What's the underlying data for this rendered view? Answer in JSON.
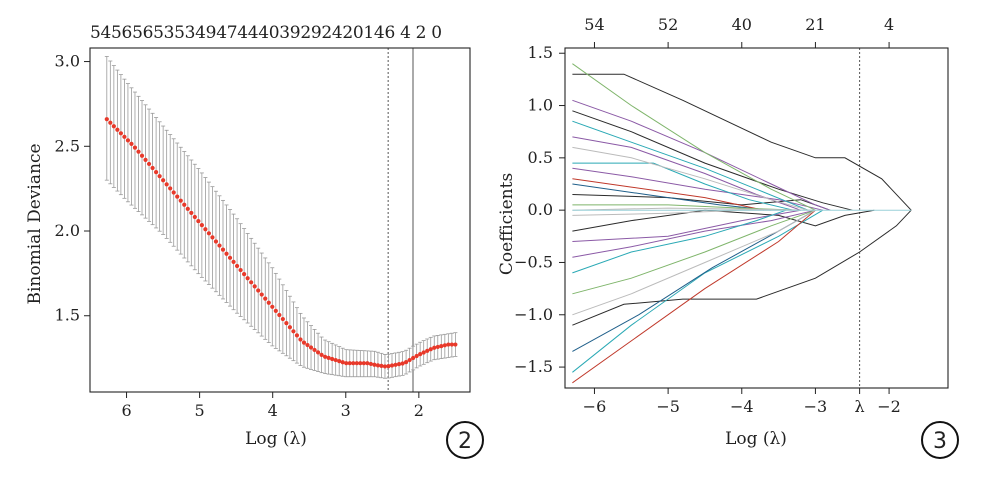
{
  "chart_data": [
    {
      "type": "line",
      "panel_label": "2",
      "xlabel": "Log (λ)",
      "ylabel": "Binomial Deviance",
      "xlim": [
        6.5,
        1.3
      ],
      "ylim": [
        1.05,
        3.08
      ],
      "x_ticks": [
        {
          "value": 6,
          "label": "6"
        },
        {
          "value": 5,
          "label": "5"
        },
        {
          "value": 4,
          "label": "4"
        },
        {
          "value": 3,
          "label": "3"
        },
        {
          "value": 2,
          "label": "2"
        }
      ],
      "y_ticks": [
        {
          "value": 3.0,
          "label": "3.0"
        },
        {
          "value": 2.5,
          "label": "2.5"
        },
        {
          "value": 2.0,
          "label": "2.0"
        },
        {
          "value": 1.5,
          "label": "1.5"
        }
      ],
      "top_axis_label": "54565653534947444039292420146 4 2 0",
      "vlines": [
        2.42,
        2.08
      ],
      "series": [
        {
          "color": "#e8392a",
          "points": [
            [
              6.27,
              2.66
            ],
            [
              5.9,
              2.5
            ],
            [
              5.5,
              2.3
            ],
            [
              5.0,
              2.05
            ],
            [
              4.5,
              1.8
            ],
            [
              4.0,
              1.55
            ],
            [
              3.6,
              1.35
            ],
            [
              3.3,
              1.26
            ],
            [
              3.0,
              1.22
            ],
            [
              2.7,
              1.22
            ],
            [
              2.6,
              1.21
            ],
            [
              2.45,
              1.2
            ],
            [
              2.2,
              1.22
            ],
            [
              2.0,
              1.27
            ],
            [
              1.8,
              1.31
            ],
            [
              1.6,
              1.33
            ],
            [
              1.5,
              1.33
            ]
          ]
        }
      ],
      "error_bars": [
        [
          6.27,
          2.3,
          3.03
        ],
        [
          6.0,
          2.18,
          2.88
        ],
        [
          5.5,
          1.98,
          2.62
        ],
        [
          5.0,
          1.74,
          2.36
        ],
        [
          4.5,
          1.52,
          2.08
        ],
        [
          4.0,
          1.32,
          1.78
        ],
        [
          3.6,
          1.2,
          1.5
        ],
        [
          3.3,
          1.16,
          1.36
        ],
        [
          3.0,
          1.14,
          1.3
        ],
        [
          2.6,
          1.14,
          1.29
        ],
        [
          2.45,
          1.13,
          1.27
        ],
        [
          2.2,
          1.15,
          1.29
        ],
        [
          2.0,
          1.2,
          1.34
        ],
        [
          1.8,
          1.24,
          1.38
        ],
        [
          1.5,
          1.26,
          1.4
        ]
      ]
    },
    {
      "type": "line",
      "panel_label": "3",
      "xlabel": "Log (λ)",
      "ylabel": "Coefficients",
      "xlim": [
        -6.4,
        -1.2
      ],
      "ylim": [
        -1.7,
        1.55
      ],
      "x_ticks": [
        {
          "value": -6,
          "label": "−6"
        },
        {
          "value": -5,
          "label": "−5"
        },
        {
          "value": -4,
          "label": "−4"
        },
        {
          "value": -3,
          "label": "−3"
        },
        {
          "value": -2.4,
          "label": "λ"
        },
        {
          "value": -2,
          "label": "−2"
        }
      ],
      "y_ticks": [
        {
          "value": 1.5,
          "label": "1.5"
        },
        {
          "value": 1.0,
          "label": "1.0"
        },
        {
          "value": 0.5,
          "label": "0.5"
        },
        {
          "value": 0.0,
          "label": "0.0"
        },
        {
          "value": -0.5,
          "label": "−0.5"
        },
        {
          "value": -1.0,
          "label": "−1.0"
        },
        {
          "value": -1.5,
          "label": "−1.5"
        }
      ],
      "top_ticks": [
        {
          "value": -6,
          "label": "54"
        },
        {
          "value": -5,
          "label": "52"
        },
        {
          "value": -4,
          "label": "40"
        },
        {
          "value": -3,
          "label": "21"
        },
        {
          "value": -2,
          "label": "4"
        }
      ],
      "vline": -2.4,
      "series": [
        {
          "color": "#2b2b2b",
          "points": [
            [
              -6.3,
              1.3
            ],
            [
              -5.6,
              1.3
            ],
            [
              -4.8,
              1.05
            ],
            [
              -3.6,
              0.65
            ],
            [
              -3.0,
              0.5
            ],
            [
              -2.6,
              0.5
            ],
            [
              -2.1,
              0.3
            ],
            [
              -1.7,
              0.0
            ]
          ]
        },
        {
          "color": "#2b2b2b",
          "points": [
            [
              -6.3,
              -1.1
            ],
            [
              -5.6,
              -0.9
            ],
            [
              -4.8,
              -0.85
            ],
            [
              -3.8,
              -0.85
            ],
            [
              -3.0,
              -0.65
            ],
            [
              -2.4,
              -0.4
            ],
            [
              -1.9,
              -0.15
            ],
            [
              -1.7,
              0.0
            ]
          ]
        },
        {
          "color": "#2b2b2b",
          "points": [
            [
              -6.3,
              0.95
            ],
            [
              -5.5,
              0.75
            ],
            [
              -4.5,
              0.45
            ],
            [
              -3.5,
              0.2
            ],
            [
              -2.9,
              0.07
            ],
            [
              -2.5,
              0.0
            ]
          ]
        },
        {
          "color": "#2b2b2b",
          "points": [
            [
              -6.3,
              -0.2
            ],
            [
              -5.5,
              -0.1
            ],
            [
              -4.5,
              0.0
            ],
            [
              -3.5,
              -0.05
            ],
            [
              -3.0,
              -0.15
            ],
            [
              -2.6,
              -0.05
            ],
            [
              -2.2,
              0.0
            ]
          ]
        },
        {
          "color": "#2b2b2b",
          "points": [
            [
              -6.3,
              0.15
            ],
            [
              -5.0,
              0.12
            ],
            [
              -4.0,
              0.05
            ],
            [
              -3.2,
              0.1
            ],
            [
              -2.8,
              0.0
            ]
          ]
        },
        {
          "color": "#8b5aa6",
          "points": [
            [
              -6.3,
              1.05
            ],
            [
              -5.5,
              0.85
            ],
            [
              -4.5,
              0.55
            ],
            [
              -3.6,
              0.25
            ],
            [
              -3.0,
              0.05
            ],
            [
              -2.8,
              0.0
            ]
          ]
        },
        {
          "color": "#8b5aa6",
          "points": [
            [
              -6.3,
              0.4
            ],
            [
              -5.5,
              0.32
            ],
            [
              -4.5,
              0.2
            ],
            [
              -3.5,
              0.1
            ],
            [
              -2.9,
              0.0
            ]
          ]
        },
        {
          "color": "#8b5aa6",
          "points": [
            [
              -6.3,
              -0.45
            ],
            [
              -5.5,
              -0.35
            ],
            [
              -4.5,
              -0.2
            ],
            [
              -3.6,
              -0.1
            ],
            [
              -3.0,
              0.0
            ]
          ]
        },
        {
          "color": "#8b5aa6",
          "points": [
            [
              -6.3,
              -0.3
            ],
            [
              -5.0,
              -0.25
            ],
            [
              -4.0,
              -0.1
            ],
            [
              -3.2,
              0.0
            ]
          ]
        },
        {
          "color": "#8b5aa6",
          "points": [
            [
              -6.3,
              0.7
            ],
            [
              -5.5,
              0.6
            ],
            [
              -4.5,
              0.35
            ],
            [
              -3.8,
              0.15
            ],
            [
              -3.2,
              0.0
            ]
          ]
        },
        {
          "color": "#2aa9b5",
          "points": [
            [
              -6.3,
              0.85
            ],
            [
              -5.5,
              0.65
            ],
            [
              -4.5,
              0.4
            ],
            [
              -3.8,
              0.2
            ],
            [
              -3.1,
              0.0
            ]
          ]
        },
        {
          "color": "#2aa9b5",
          "points": [
            [
              -6.3,
              0.45
            ],
            [
              -5.2,
              0.45
            ],
            [
              -4.5,
              0.25
            ],
            [
              -3.9,
              0.1
            ],
            [
              -3.3,
              0.0
            ]
          ]
        },
        {
          "color": "#2aa9b5",
          "points": [
            [
              -6.3,
              -1.55
            ],
            [
              -5.5,
              -1.1
            ],
            [
              -4.5,
              -0.6
            ],
            [
              -3.5,
              -0.25
            ],
            [
              -2.9,
              0.0
            ]
          ]
        },
        {
          "color": "#2aa9b5",
          "points": [
            [
              -6.3,
              -0.6
            ],
            [
              -5.5,
              -0.4
            ],
            [
              -4.5,
              -0.25
            ],
            [
              -3.8,
              -0.1
            ],
            [
              -3.4,
              0.0
            ]
          ]
        },
        {
          "color": "#1f5f8a",
          "points": [
            [
              -6.3,
              -1.35
            ],
            [
              -5.4,
              -1.0
            ],
            [
              -4.4,
              -0.55
            ],
            [
              -3.5,
              -0.2
            ],
            [
              -3.0,
              0.0
            ]
          ]
        },
        {
          "color": "#1f5f8a",
          "points": [
            [
              -6.3,
              0.25
            ],
            [
              -5.3,
              0.15
            ],
            [
              -4.3,
              0.05
            ],
            [
              -3.6,
              0.0
            ]
          ]
        },
        {
          "color": "#c0392b",
          "points": [
            [
              -6.3,
              -1.65
            ],
            [
              -5.5,
              -1.25
            ],
            [
              -4.5,
              -0.75
            ],
            [
              -3.5,
              -0.3
            ],
            [
              -3.0,
              0.0
            ]
          ]
        },
        {
          "color": "#c0392b",
          "points": [
            [
              -6.3,
              0.3
            ],
            [
              -5.5,
              0.22
            ],
            [
              -4.5,
              0.12
            ],
            [
              -3.7,
              0.0
            ]
          ]
        },
        {
          "color": "#7fb56b",
          "points": [
            [
              -6.3,
              1.4
            ],
            [
              -5.5,
              1.0
            ],
            [
              -4.5,
              0.55
            ],
            [
              -3.6,
              0.2
            ],
            [
              -3.0,
              0.0
            ]
          ]
        },
        {
          "color": "#7fb56b",
          "points": [
            [
              -6.3,
              -0.8
            ],
            [
              -5.5,
              -0.65
            ],
            [
              -4.5,
              -0.4
            ],
            [
              -3.6,
              -0.15
            ],
            [
              -3.0,
              0.0
            ]
          ]
        },
        {
          "color": "#7fb56b",
          "points": [
            [
              -6.3,
              0.05
            ],
            [
              -5.0,
              0.05
            ],
            [
              -4.0,
              0.02
            ],
            [
              -3.2,
              0.0
            ]
          ]
        },
        {
          "color": "#bbbbbb",
          "points": [
            [
              -6.3,
              0.6
            ],
            [
              -5.5,
              0.5
            ],
            [
              -4.5,
              0.3
            ],
            [
              -3.6,
              0.1
            ],
            [
              -3.1,
              0.0
            ]
          ]
        },
        {
          "color": "#bbbbbb",
          "points": [
            [
              -6.3,
              -1.0
            ],
            [
              -5.5,
              -0.8
            ],
            [
              -4.5,
              -0.5
            ],
            [
              -3.5,
              -0.2
            ],
            [
              -3.0,
              0.0
            ]
          ]
        },
        {
          "color": "#bbbbbb",
          "points": [
            [
              -6.3,
              -0.05
            ],
            [
              -5.0,
              -0.03
            ],
            [
              -4.0,
              0.0
            ],
            [
              -3.2,
              0.0
            ]
          ]
        },
        {
          "color": "#bbbbbb",
          "points": [
            [
              -6.3,
              0.0
            ],
            [
              -5.0,
              0.02
            ],
            [
              -4.0,
              0.01
            ],
            [
              -3.0,
              0.0
            ]
          ]
        },
        {
          "color": "#9ad0d8",
          "points": [
            [
              -6.3,
              0.0
            ],
            [
              -4.5,
              0.0
            ],
            [
              -3.0,
              0.0
            ],
            [
              -2.0,
              0.0
            ],
            [
              -1.7,
              0.0
            ]
          ]
        }
      ]
    }
  ]
}
